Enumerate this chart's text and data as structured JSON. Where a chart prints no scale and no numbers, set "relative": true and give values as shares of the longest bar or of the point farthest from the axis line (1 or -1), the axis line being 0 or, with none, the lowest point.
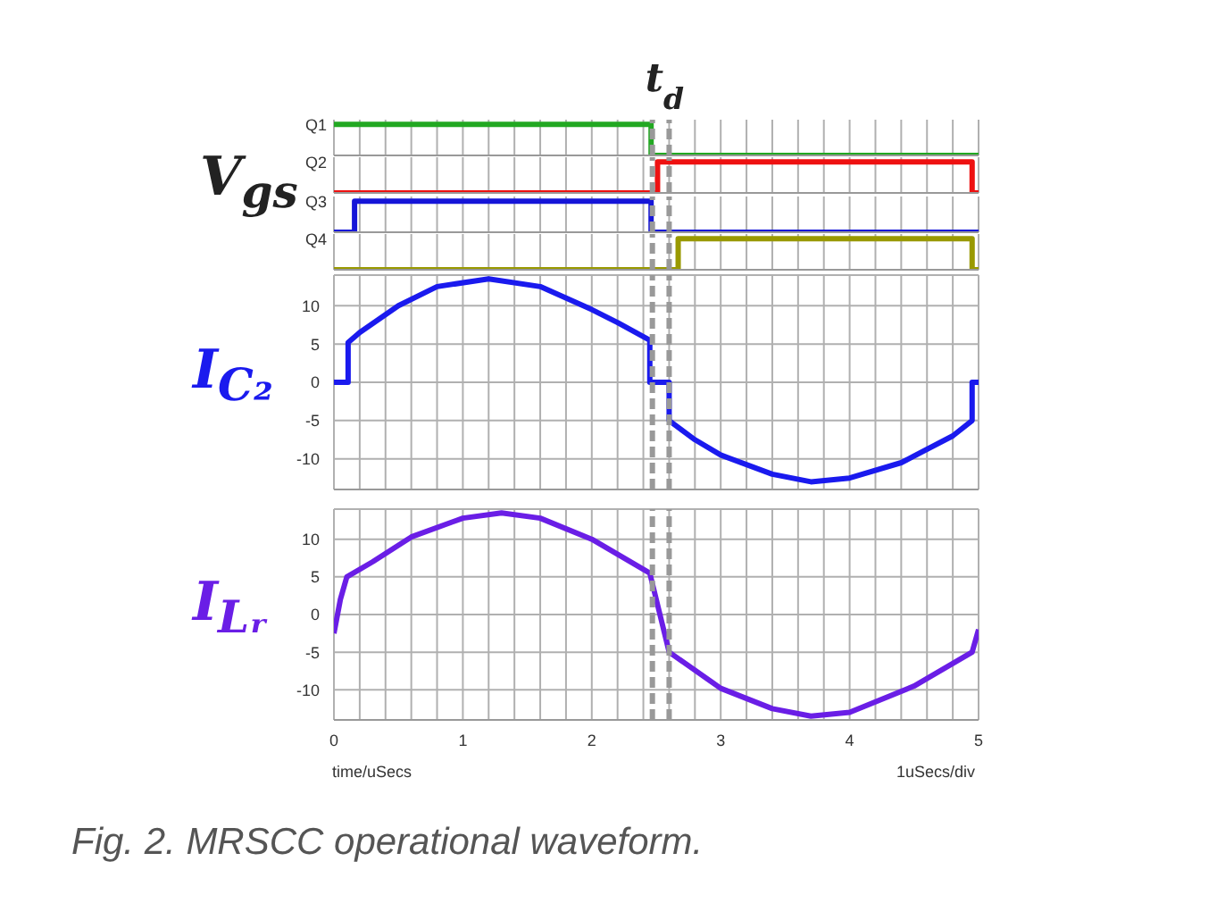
{
  "chart_data": [
    {
      "type": "step",
      "relative": true,
      "annotations": [
        "V$_{gs}$"
      ],
      "x": [
        0,
        0.16,
        2.46,
        2.51,
        2.67,
        4.95,
        5
      ],
      "xlim": [
        0,
        5
      ],
      "xticks": [
        0,
        {
          "value": 0.2,
          "label": null
        },
        {
          "value": 0.4,
          "label": null
        },
        {
          "value": 0.6,
          "label": null
        },
        {
          "value": 0.8,
          "label": null
        },
        1,
        {
          "value": 1.2,
          "label": null
        },
        {
          "value": 1.4,
          "label": null
        },
        {
          "value": 1.6,
          "label": null
        },
        {
          "value": 1.8,
          "label": null
        },
        2,
        {
          "value": 2.2,
          "label": null
        },
        {
          "value": 2.4,
          "label": null
        },
        {
          "value": 2.6,
          "label": null
        },
        {
          "value": 2.8,
          "label": null
        },
        3,
        {
          "value": 3.2,
          "label": null
        },
        {
          "value": 3.4,
          "label": null
        },
        {
          "value": 3.6,
          "label": null
        },
        {
          "value": 3.8,
          "label": null
        },
        4,
        {
          "value": 4.2,
          "label": null
        },
        {
          "value": 4.4,
          "label": null
        },
        {
          "value": 4.6,
          "label": null
        },
        {
          "value": 4.8,
          "label": null
        },
        5
      ],
      "tick_labels": false,
      "grid": "x",
      "series": [
        {
          "name": "Q1",
          "color": "#22a822",
          "values": [
            1,
            1,
            0,
            0,
            0,
            0,
            0
          ]
        }
      ],
      "ref_lines": [
        {
          "axis": "x",
          "value": 2.47,
          "label": "t$_{d}$",
          "color": "#999999",
          "line_style": "dashed"
        },
        {
          "axis": "x",
          "value": 2.6,
          "color": "#999999",
          "line_style": "dashed"
        }
      ]
    },
    {
      "type": "step",
      "relative": true,
      "x": [
        0,
        0.16,
        2.46,
        2.51,
        2.67,
        4.95,
        5
      ],
      "xlim": [
        0,
        5
      ],
      "xticks": [
        0,
        {
          "value": 0.2,
          "label": null
        },
        {
          "value": 0.4,
          "label": null
        },
        {
          "value": 0.6,
          "label": null
        },
        {
          "value": 0.8,
          "label": null
        },
        1,
        {
          "value": 1.2,
          "label": null
        },
        {
          "value": 1.4,
          "label": null
        },
        {
          "value": 1.6,
          "label": null
        },
        {
          "value": 1.8,
          "label": null
        },
        2,
        {
          "value": 2.2,
          "label": null
        },
        {
          "value": 2.4,
          "label": null
        },
        {
          "value": 2.6,
          "label": null
        },
        {
          "value": 2.8,
          "label": null
        },
        3,
        {
          "value": 3.2,
          "label": null
        },
        {
          "value": 3.4,
          "label": null
        },
        {
          "value": 3.6,
          "label": null
        },
        {
          "value": 3.8,
          "label": null
        },
        4,
        {
          "value": 4.2,
          "label": null
        },
        {
          "value": 4.4,
          "label": null
        },
        {
          "value": 4.6,
          "label": null
        },
        {
          "value": 4.8,
          "label": null
        },
        5
      ],
      "tick_labels": false,
      "grid": "x",
      "series": [
        {
          "name": "Q2",
          "color": "#ee1111",
          "values": [
            0,
            0,
            0,
            1,
            1,
            0,
            0
          ]
        }
      ],
      "ref_lines": [
        {
          "axis": "x",
          "value": 2.47,
          "color": "#999999",
          "line_style": "dashed"
        },
        {
          "axis": "x",
          "value": 2.6,
          "color": "#999999",
          "line_style": "dashed"
        }
      ]
    },
    {
      "type": "step",
      "relative": true,
      "x": [
        0,
        0.16,
        2.46,
        2.51,
        2.67,
        4.95,
        5
      ],
      "xlim": [
        0,
        5
      ],
      "xticks": [
        0,
        {
          "value": 0.2,
          "label": null
        },
        {
          "value": 0.4,
          "label": null
        },
        {
          "value": 0.6,
          "label": null
        },
        {
          "value": 0.8,
          "label": null
        },
        1,
        {
          "value": 1.2,
          "label": null
        },
        {
          "value": 1.4,
          "label": null
        },
        {
          "value": 1.6,
          "label": null
        },
        {
          "value": 1.8,
          "label": null
        },
        2,
        {
          "value": 2.2,
          "label": null
        },
        {
          "value": 2.4,
          "label": null
        },
        {
          "value": 2.6,
          "label": null
        },
        {
          "value": 2.8,
          "label": null
        },
        3,
        {
          "value": 3.2,
          "label": null
        },
        {
          "value": 3.4,
          "label": null
        },
        {
          "value": 3.6,
          "label": null
        },
        {
          "value": 3.8,
          "label": null
        },
        4,
        {
          "value": 4.2,
          "label": null
        },
        {
          "value": 4.4,
          "label": null
        },
        {
          "value": 4.6,
          "label": null
        },
        {
          "value": 4.8,
          "label": null
        },
        5
      ],
      "tick_labels": false,
      "grid": "x",
      "series": [
        {
          "name": "Q3",
          "color": "#1515d8",
          "values": [
            0,
            1,
            0,
            0,
            0,
            0,
            0
          ]
        }
      ],
      "ref_lines": [
        {
          "axis": "x",
          "value": 2.47,
          "color": "#999999",
          "line_style": "dashed"
        },
        {
          "axis": "x",
          "value": 2.6,
          "color": "#999999",
          "line_style": "dashed"
        }
      ]
    },
    {
      "type": "step",
      "relative": true,
      "x": [
        0,
        0.16,
        2.46,
        2.51,
        2.67,
        4.95,
        5
      ],
      "xlim": [
        0,
        5
      ],
      "xticks": [
        0,
        {
          "value": 0.2,
          "label": null
        },
        {
          "value": 0.4,
          "label": null
        },
        {
          "value": 0.6,
          "label": null
        },
        {
          "value": 0.8,
          "label": null
        },
        1,
        {
          "value": 1.2,
          "label": null
        },
        {
          "value": 1.4,
          "label": null
        },
        {
          "value": 1.6,
          "label": null
        },
        {
          "value": 1.8,
          "label": null
        },
        2,
        {
          "value": 2.2,
          "label": null
        },
        {
          "value": 2.4,
          "label": null
        },
        {
          "value": 2.6,
          "label": null
        },
        {
          "value": 2.8,
          "label": null
        },
        3,
        {
          "value": 3.2,
          "label": null
        },
        {
          "value": 3.4,
          "label": null
        },
        {
          "value": 3.6,
          "label": null
        },
        {
          "value": 3.8,
          "label": null
        },
        4,
        {
          "value": 4.2,
          "label": null
        },
        {
          "value": 4.4,
          "label": null
        },
        {
          "value": 4.6,
          "label": null
        },
        {
          "value": 4.8,
          "label": null
        },
        5
      ],
      "tick_labels": false,
      "grid": "x",
      "series": [
        {
          "name": "Q4",
          "color": "#999900",
          "values": [
            0,
            0,
            0,
            0,
            1,
            0,
            0
          ]
        }
      ],
      "ref_lines": [
        {
          "axis": "x",
          "value": 2.47,
          "color": "#999999",
          "line_style": "dashed"
        },
        {
          "axis": "x",
          "value": 2.6,
          "color": "#999999",
          "line_style": "dashed"
        }
      ]
    },
    {
      "type": "line",
      "ylabel": "I$_{C₂}$",
      "xlim": [
        0,
        5
      ],
      "xticks": [
        0,
        {
          "value": 0.2,
          "label": null
        },
        {
          "value": 0.4,
          "label": null
        },
        {
          "value": 0.6,
          "label": null
        },
        {
          "value": 0.8,
          "label": null
        },
        1,
        {
          "value": 1.2,
          "label": null
        },
        {
          "value": 1.4,
          "label": null
        },
        {
          "value": 1.6,
          "label": null
        },
        {
          "value": 1.8,
          "label": null
        },
        2,
        {
          "value": 2.2,
          "label": null
        },
        {
          "value": 2.4,
          "label": null
        },
        {
          "value": 2.6,
          "label": null
        },
        {
          "value": 2.8,
          "label": null
        },
        3,
        {
          "value": 3.2,
          "label": null
        },
        {
          "value": 3.4,
          "label": null
        },
        {
          "value": 3.6,
          "label": null
        },
        {
          "value": 3.8,
          "label": null
        },
        4,
        {
          "value": 4.2,
          "label": null
        },
        {
          "value": 4.4,
          "label": null
        },
        {
          "value": 4.6,
          "label": null
        },
        {
          "value": 4.8,
          "label": null
        },
        5
      ],
      "ylim": [
        -14,
        14
      ],
      "yticks": [
        -10,
        -5,
        0,
        5,
        10
      ],
      "tick_labels": "y",
      "grid": true,
      "x": [
        0,
        0.11,
        0.11,
        0.2,
        0.5,
        0.8,
        1.2,
        1.6,
        2.0,
        2.2,
        2.45,
        2.45,
        2.6,
        2.6,
        2.8,
        3.0,
        3.4,
        3.7,
        4.0,
        4.4,
        4.8,
        4.95,
        4.95,
        5
      ],
      "series": [
        {
          "color": "#1a1aee",
          "values": [
            0,
            0,
            5.2,
            6.5,
            10,
            12.5,
            13.5,
            12.5,
            9.5,
            7.8,
            5.5,
            0,
            0,
            -5,
            -7.5,
            -9.5,
            -12,
            -13,
            -12.5,
            -10.5,
            -7,
            -5,
            0,
            0
          ]
        }
      ],
      "ref_lines": [
        {
          "axis": "x",
          "value": 2.47,
          "color": "#999999",
          "line_style": "dashed"
        },
        {
          "axis": "x",
          "value": 2.6,
          "color": "#999999",
          "line_style": "dashed"
        }
      ]
    },
    {
      "type": "line",
      "ylabel": "I$_{Lᵣ}$",
      "xlabel": "time/uSecs",
      "annotations": [
        "1uSecs/div",
        "Fig. 2. MRSCC operational waveform."
      ],
      "xlim": [
        0,
        5
      ],
      "xticks": [
        0,
        {
          "value": 0.2,
          "label": null
        },
        {
          "value": 0.4,
          "label": null
        },
        {
          "value": 0.6,
          "label": null
        },
        {
          "value": 0.8,
          "label": null
        },
        1,
        {
          "value": 1.2,
          "label": null
        },
        {
          "value": 1.4,
          "label": null
        },
        {
          "value": 1.6,
          "label": null
        },
        {
          "value": 1.8,
          "label": null
        },
        2,
        {
          "value": 2.2,
          "label": null
        },
        {
          "value": 2.4,
          "label": null
        },
        {
          "value": 2.6,
          "label": null
        },
        {
          "value": 2.8,
          "label": null
        },
        3,
        {
          "value": 3.2,
          "label": null
        },
        {
          "value": 3.4,
          "label": null
        },
        {
          "value": 3.6,
          "label": null
        },
        {
          "value": 3.8,
          "label": null
        },
        4,
        {
          "value": 4.2,
          "label": null
        },
        {
          "value": 4.4,
          "label": null
        },
        {
          "value": 4.6,
          "label": null
        },
        {
          "value": 4.8,
          "label": null
        },
        5
      ],
      "ylim": [
        -14,
        14
      ],
      "yticks": [
        -10,
        -5,
        0,
        5,
        10
      ],
      "grid": true,
      "x": [
        0,
        0.05,
        0.1,
        0.3,
        0.6,
        1.0,
        1.3,
        1.6,
        2.0,
        2.45,
        2.5,
        2.6,
        3.0,
        3.4,
        3.7,
        4.0,
        4.5,
        4.95,
        5
      ],
      "series": [
        {
          "color": "#6a1ee6",
          "values": [
            -2.5,
            2,
            5,
            7,
            10.3,
            12.8,
            13.5,
            12.8,
            10,
            5.5,
            2,
            -5,
            -9.8,
            -12.5,
            -13.5,
            -13,
            -9.5,
            -5,
            -2
          ]
        }
      ],
      "ref_lines": [
        {
          "axis": "x",
          "value": 2.47,
          "color": "#999999",
          "line_style": "dashed"
        },
        {
          "axis": "x",
          "value": 2.6,
          "color": "#999999",
          "line_style": "dashed"
        }
      ]
    }
  ]
}
